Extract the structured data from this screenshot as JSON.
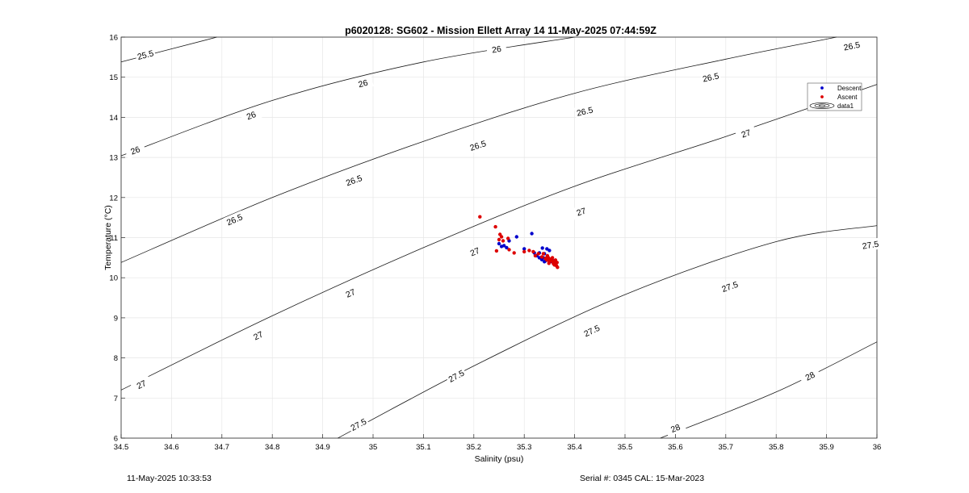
{
  "chart_data": {
    "type": "scatter",
    "title": "p6020128: SG602 - Mission Ellett Array 14 11-May-2025 07:44:59Z",
    "xlabel": "Salinity (psu)",
    "ylabel": "Temperature (°C)",
    "xlim": [
      34.5,
      36
    ],
    "ylim": [
      6,
      16
    ],
    "xticks": [
      34.5,
      34.6,
      34.7,
      34.8,
      34.9,
      35,
      35.1,
      35.2,
      35.3,
      35.4,
      35.5,
      35.6,
      35.7,
      35.8,
      35.9,
      36
    ],
    "xtick_labels": [
      "34.5",
      "34.6",
      "34.7",
      "34.8",
      "34.9",
      "35",
      "35.1",
      "35.2",
      "35.3",
      "35.4",
      "35.5",
      "35.6",
      "35.7",
      "35.8",
      "35.9",
      "36"
    ],
    "yticks": [
      6,
      7,
      8,
      9,
      10,
      11,
      12,
      13,
      14,
      15,
      16
    ],
    "ytick_labels": [
      "6",
      "7",
      "8",
      "9",
      "10",
      "11",
      "12",
      "13",
      "14",
      "15",
      "16"
    ],
    "grid": true,
    "legend_position": "top-right",
    "legend": [
      "Descent",
      "Ascent",
      "data1"
    ],
    "contours": [
      {
        "level": "25.5",
        "points": [
          [
            34.5,
            15.38
          ],
          [
            34.69,
            16.0
          ]
        ]
      },
      {
        "level": "26",
        "points": [
          [
            34.5,
            13.04
          ],
          [
            34.8,
            14.42
          ],
          [
            35.1,
            15.38
          ],
          [
            35.4,
            16.0
          ]
        ]
      },
      {
        "level": "26.5",
        "points": [
          [
            34.5,
            10.38
          ],
          [
            34.8,
            12.0
          ],
          [
            35.1,
            13.4
          ],
          [
            35.4,
            14.6
          ],
          [
            35.7,
            15.45
          ],
          [
            35.92,
            16.0
          ]
        ]
      },
      {
        "level": "27",
        "points": [
          [
            34.5,
            7.2
          ],
          [
            34.8,
            9.05
          ],
          [
            35.1,
            10.75
          ],
          [
            35.4,
            12.28
          ],
          [
            35.7,
            13.52
          ],
          [
            36.0,
            14.82
          ]
        ]
      },
      {
        "level": "27.5",
        "points": [
          [
            34.93,
            6.0
          ],
          [
            35.2,
            7.8
          ],
          [
            35.5,
            9.58
          ],
          [
            35.8,
            10.9
          ],
          [
            36.0,
            11.3
          ]
        ]
      },
      {
        "level": "28",
        "points": [
          [
            35.57,
            6.0
          ],
          [
            35.8,
            7.15
          ],
          [
            36.0,
            8.4
          ]
        ]
      }
    ],
    "contour_labels": [
      {
        "text": "25.5",
        "x": 34.548,
        "y": 15.56
      },
      {
        "text": "26",
        "x": 35.245,
        "y": 15.7
      },
      {
        "text": "26",
        "x": 34.98,
        "y": 14.85
      },
      {
        "text": "26",
        "x": 34.758,
        "y": 14.05
      },
      {
        "text": "26",
        "x": 34.528,
        "y": 13.18
      },
      {
        "text": "26.5",
        "x": 35.95,
        "y": 15.78
      },
      {
        "text": "26.5",
        "x": 35.67,
        "y": 15.0
      },
      {
        "text": "26.5",
        "x": 35.42,
        "y": 14.15
      },
      {
        "text": "26.5",
        "x": 35.208,
        "y": 13.3
      },
      {
        "text": "26.5",
        "x": 34.962,
        "y": 12.43
      },
      {
        "text": "26.5",
        "x": 34.725,
        "y": 11.45
      },
      {
        "text": "27",
        "x": 35.946,
        "y": 14.42
      },
      {
        "text": "27",
        "x": 35.74,
        "y": 13.6
      },
      {
        "text": "27",
        "x": 35.413,
        "y": 11.65
      },
      {
        "text": "27",
        "x": 35.202,
        "y": 10.65
      },
      {
        "text": "27",
        "x": 34.955,
        "y": 9.62
      },
      {
        "text": "27",
        "x": 34.772,
        "y": 8.56
      },
      {
        "text": "27",
        "x": 34.54,
        "y": 7.34
      },
      {
        "text": "27.5",
        "x": 35.987,
        "y": 10.82
      },
      {
        "text": "27.5",
        "x": 35.708,
        "y": 9.78
      },
      {
        "text": "27.5",
        "x": 35.434,
        "y": 8.68
      },
      {
        "text": "27.5",
        "x": 35.165,
        "y": 7.55
      },
      {
        "text": "27.5",
        "x": 34.971,
        "y": 6.34
      },
      {
        "text": "28",
        "x": 35.867,
        "y": 7.55
      },
      {
        "text": "28",
        "x": 35.6,
        "y": 6.25
      }
    ],
    "series": [
      {
        "name": "Descent",
        "marker": "dot",
        "color": "#0000cc",
        "points": [
          [
            35.25,
            10.85
          ],
          [
            35.255,
            10.78
          ],
          [
            35.26,
            10.8
          ],
          [
            35.265,
            10.75
          ],
          [
            35.27,
            10.92
          ],
          [
            35.285,
            11.02
          ],
          [
            35.3,
            10.72
          ],
          [
            35.315,
            11.1
          ],
          [
            35.32,
            10.62
          ],
          [
            35.325,
            10.55
          ],
          [
            35.33,
            10.5
          ],
          [
            35.335,
            10.45
          ],
          [
            35.34,
            10.4
          ],
          [
            35.34,
            10.6
          ],
          [
            35.345,
            10.72
          ],
          [
            35.35,
            10.42
          ],
          [
            35.35,
            10.68
          ],
          [
            35.355,
            10.4
          ],
          [
            35.36,
            10.38
          ],
          [
            35.338,
            10.5
          ],
          [
            35.345,
            10.5
          ],
          [
            35.33,
            10.62
          ],
          [
            35.342,
            10.42
          ],
          [
            35.348,
            10.45
          ],
          [
            35.352,
            10.45
          ],
          [
            35.358,
            10.42
          ],
          [
            35.336,
            10.74
          ],
          [
            35.362,
            10.35
          ]
        ]
      },
      {
        "name": "Ascent",
        "marker": "dot",
        "color": "#dd0000",
        "points": [
          [
            35.212,
            11.52
          ],
          [
            35.243,
            11.27
          ],
          [
            35.252,
            11.08
          ],
          [
            35.255,
            11.02
          ],
          [
            35.25,
            10.95
          ],
          [
            35.258,
            10.92
          ],
          [
            35.245,
            10.67
          ],
          [
            35.268,
            10.98
          ],
          [
            35.27,
            10.7
          ],
          [
            35.28,
            10.62
          ],
          [
            35.3,
            10.65
          ],
          [
            35.31,
            10.68
          ],
          [
            35.318,
            10.65
          ],
          [
            35.322,
            10.55
          ],
          [
            35.328,
            10.6
          ],
          [
            35.335,
            10.52
          ],
          [
            35.338,
            10.6
          ],
          [
            35.342,
            10.48
          ],
          [
            35.345,
            10.44
          ],
          [
            35.348,
            10.5
          ],
          [
            35.35,
            10.4
          ],
          [
            35.352,
            10.46
          ],
          [
            35.355,
            10.42
          ],
          [
            35.357,
            10.38
          ],
          [
            35.358,
            10.35
          ],
          [
            35.36,
            10.42
          ],
          [
            35.36,
            10.32
          ],
          [
            35.362,
            10.36
          ],
          [
            35.364,
            10.3
          ],
          [
            35.365,
            10.38
          ],
          [
            35.366,
            10.26
          ],
          [
            35.356,
            10.5
          ],
          [
            35.346,
            10.55
          ],
          [
            35.349,
            10.36
          ],
          [
            35.362,
            10.44
          ]
        ]
      }
    ]
  },
  "footer": {
    "timestamp": "11-May-2025 10:33:53",
    "serial": "Serial #: 0345  CAL: 15-Mar-2023"
  }
}
